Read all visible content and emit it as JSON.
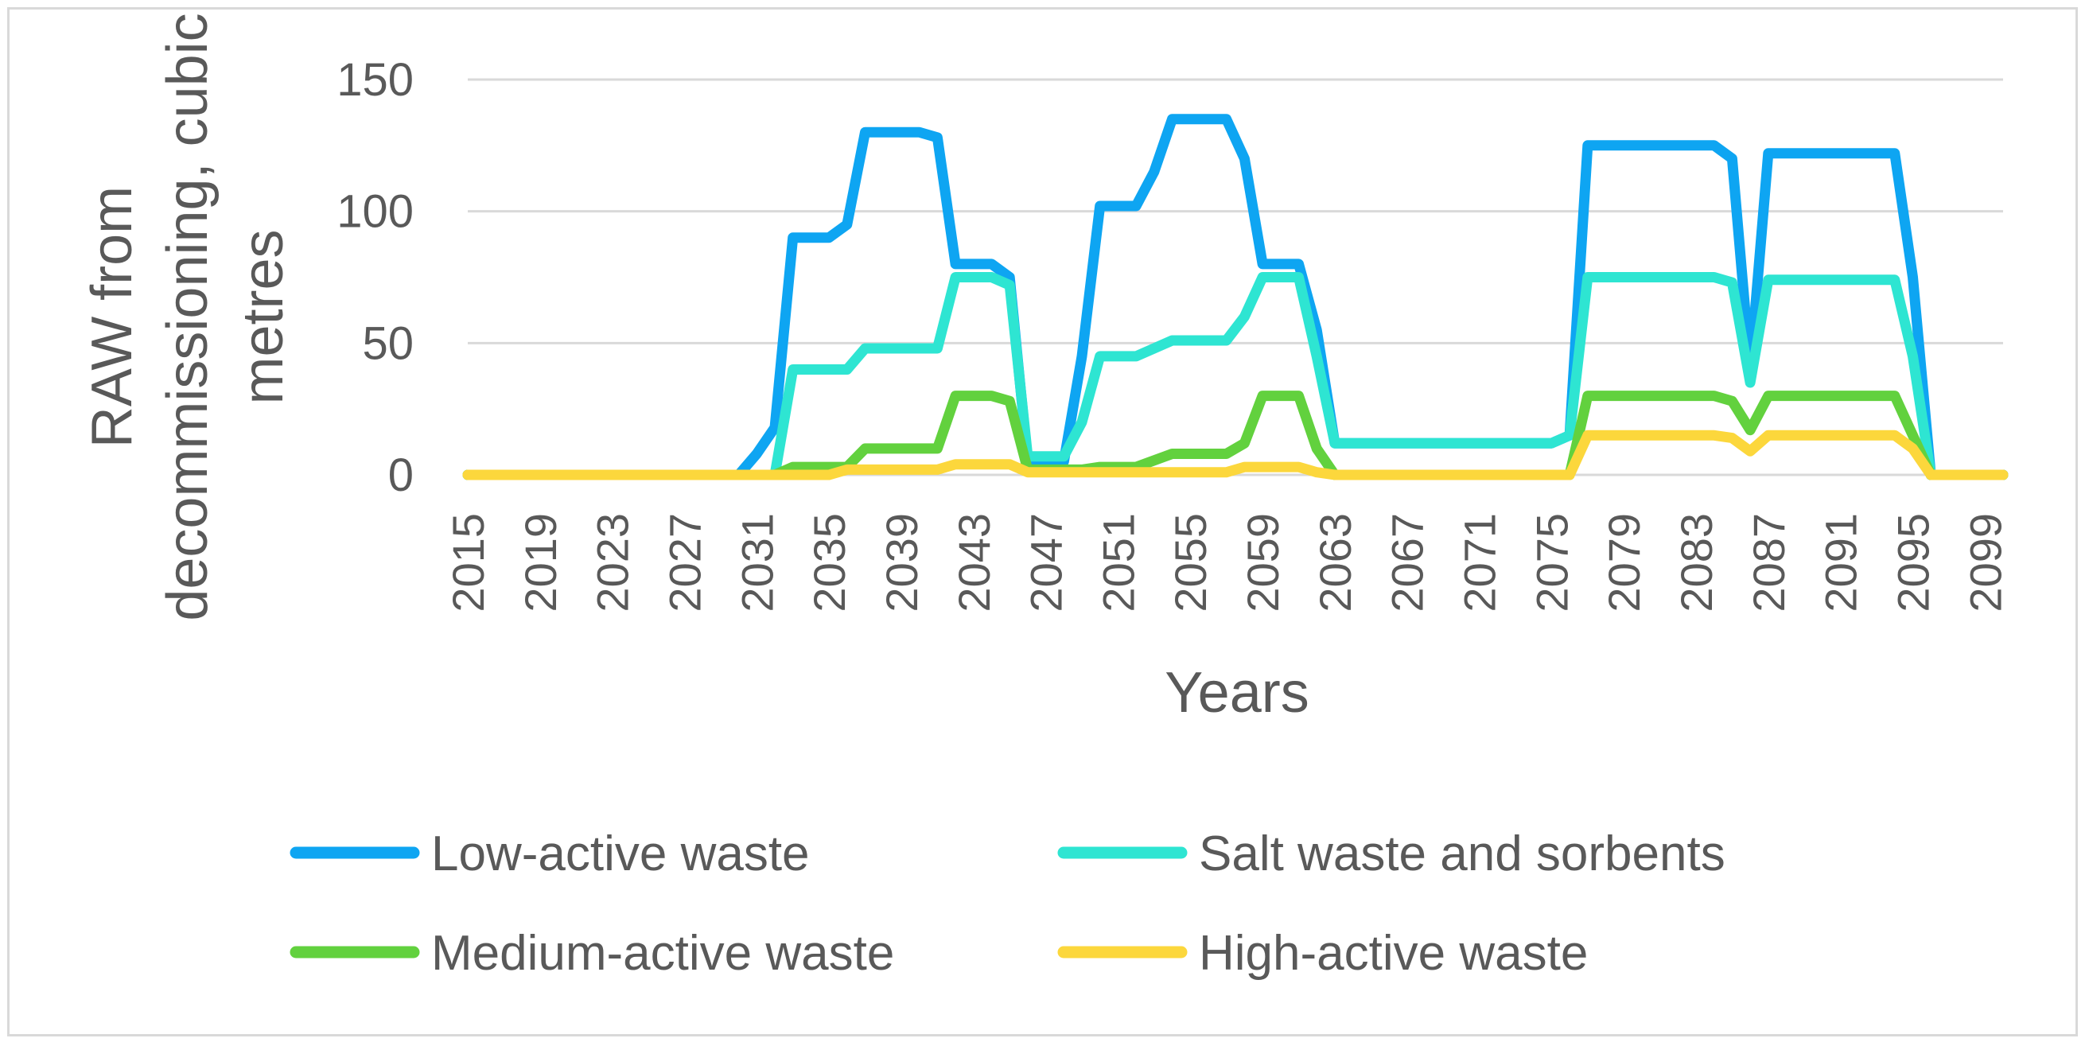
{
  "chart_data": {
    "type": "line",
    "xlabel": "Years",
    "ylabel": "RAW from decommissioning, cubic metres",
    "ylabel_lines": [
      "RAW from",
      "decommissioning, cubic",
      "metres"
    ],
    "ylim": [
      0,
      150
    ],
    "yticks": [
      0,
      50,
      100,
      150
    ],
    "x_start": 2015,
    "x_end": 2100,
    "xtick_labels": [
      "2015",
      "2019",
      "2023",
      "2027",
      "2031",
      "2035",
      "2039",
      "2043",
      "2047",
      "2051",
      "2055",
      "2059",
      "2063",
      "2067",
      "2071",
      "2075",
      "2079",
      "2083",
      "2087",
      "2091",
      "2095",
      "2099"
    ],
    "grid": true,
    "legend_position": "bottom",
    "series": [
      {
        "name": "Low-active waste",
        "color": "#0ea5f2",
        "points": [
          [
            2015,
            0
          ],
          [
            2030,
            0
          ],
          [
            2031,
            8
          ],
          [
            2032,
            18
          ],
          [
            2033,
            90
          ],
          [
            2035,
            90
          ],
          [
            2036,
            95
          ],
          [
            2037,
            130
          ],
          [
            2040,
            130
          ],
          [
            2041,
            128
          ],
          [
            2042,
            80
          ],
          [
            2044,
            80
          ],
          [
            2045,
            75
          ],
          [
            2046,
            5
          ],
          [
            2048,
            5
          ],
          [
            2049,
            45
          ],
          [
            2050,
            102
          ],
          [
            2052,
            102
          ],
          [
            2053,
            115
          ],
          [
            2054,
            135
          ],
          [
            2057,
            135
          ],
          [
            2058,
            120
          ],
          [
            2059,
            80
          ],
          [
            2061,
            80
          ],
          [
            2062,
            55
          ],
          [
            2063,
            12
          ],
          [
            2075,
            12
          ],
          [
            2076,
            15
          ],
          [
            2077,
            125
          ],
          [
            2084,
            125
          ],
          [
            2085,
            120
          ],
          [
            2086,
            40
          ],
          [
            2087,
            122
          ],
          [
            2094,
            122
          ],
          [
            2095,
            75
          ],
          [
            2096,
            0
          ],
          [
            2100,
            0
          ]
        ]
      },
      {
        "name": "Salt waste and sorbents",
        "color": "#2ee5d2",
        "points": [
          [
            2015,
            0
          ],
          [
            2032,
            0
          ],
          [
            2033,
            40
          ],
          [
            2036,
            40
          ],
          [
            2037,
            48
          ],
          [
            2041,
            48
          ],
          [
            2042,
            75
          ],
          [
            2044,
            75
          ],
          [
            2045,
            72
          ],
          [
            2046,
            7
          ],
          [
            2048,
            7
          ],
          [
            2049,
            20
          ],
          [
            2050,
            45
          ],
          [
            2052,
            45
          ],
          [
            2054,
            51
          ],
          [
            2057,
            51
          ],
          [
            2058,
            60
          ],
          [
            2059,
            75
          ],
          [
            2061,
            75
          ],
          [
            2062,
            45
          ],
          [
            2063,
            12
          ],
          [
            2075,
            12
          ],
          [
            2076,
            15
          ],
          [
            2077,
            75
          ],
          [
            2084,
            75
          ],
          [
            2085,
            73
          ],
          [
            2086,
            35
          ],
          [
            2087,
            74
          ],
          [
            2094,
            74
          ],
          [
            2095,
            45
          ],
          [
            2096,
            0
          ],
          [
            2100,
            0
          ]
        ]
      },
      {
        "name": "Medium-active waste",
        "color": "#62d13e",
        "points": [
          [
            2015,
            0
          ],
          [
            2032,
            0
          ],
          [
            2033,
            3
          ],
          [
            2036,
            3
          ],
          [
            2037,
            10
          ],
          [
            2041,
            10
          ],
          [
            2042,
            30
          ],
          [
            2044,
            30
          ],
          [
            2045,
            28
          ],
          [
            2046,
            2
          ],
          [
            2049,
            2
          ],
          [
            2050,
            3
          ],
          [
            2052,
            3
          ],
          [
            2054,
            8
          ],
          [
            2057,
            8
          ],
          [
            2058,
            12
          ],
          [
            2059,
            30
          ],
          [
            2061,
            30
          ],
          [
            2062,
            10
          ],
          [
            2063,
            0
          ],
          [
            2076,
            0
          ],
          [
            2077,
            30
          ],
          [
            2084,
            30
          ],
          [
            2085,
            28
          ],
          [
            2086,
            17
          ],
          [
            2087,
            30
          ],
          [
            2094,
            30
          ],
          [
            2095,
            15
          ],
          [
            2096,
            0
          ],
          [
            2100,
            0
          ]
        ]
      },
      {
        "name": "High-active waste",
        "color": "#fcd73c",
        "points": [
          [
            2015,
            0
          ],
          [
            2035,
            0
          ],
          [
            2036,
            2
          ],
          [
            2041,
            2
          ],
          [
            2042,
            4
          ],
          [
            2045,
            4
          ],
          [
            2046,
            1
          ],
          [
            2057,
            1
          ],
          [
            2058,
            3
          ],
          [
            2061,
            3
          ],
          [
            2062,
            1
          ],
          [
            2063,
            0
          ],
          [
            2076,
            0
          ],
          [
            2077,
            15
          ],
          [
            2084,
            15
          ],
          [
            2085,
            14
          ],
          [
            2086,
            9
          ],
          [
            2087,
            15
          ],
          [
            2094,
            15
          ],
          [
            2095,
            10
          ],
          [
            2096,
            0
          ],
          [
            2100,
            0
          ]
        ]
      }
    ]
  }
}
